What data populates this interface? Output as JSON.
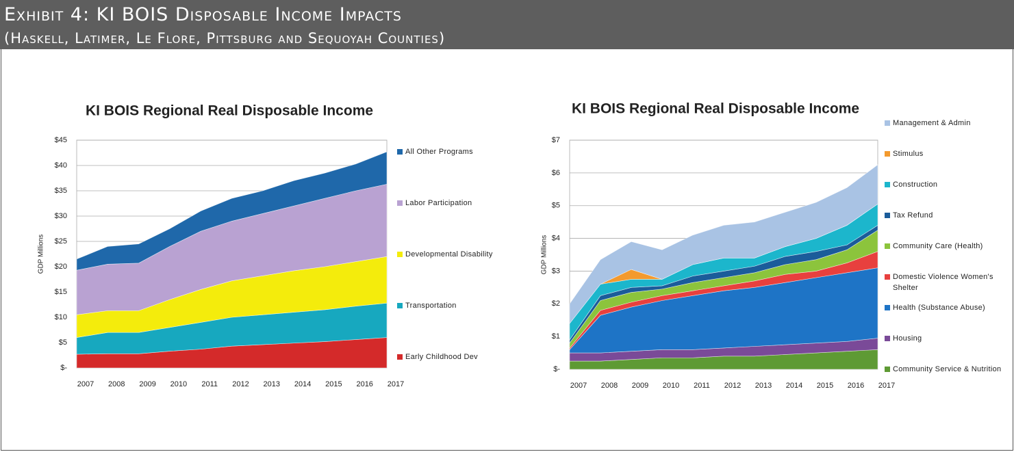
{
  "header": {
    "title": "Exhibit 4: KI BOIS Disposable Income Impacts",
    "subtitle": "(Haskell, Latimer, Le Flore, Pittsburg and Sequoyah Counties)"
  },
  "chart_data": [
    {
      "type": "stacked_area",
      "title": "KI BOIS Regional Real Disposable Income",
      "y_label": "GDP Millions",
      "categories": [
        "2007",
        "2008",
        "2009",
        "2010",
        "2011",
        "2012",
        "2013",
        "2014",
        "2015",
        "2016",
        "2017"
      ],
      "ylim": [
        0,
        45
      ],
      "yticks": [
        {
          "value": 0,
          "label": "$-"
        },
        {
          "value": 5,
          "label": "$5"
        },
        {
          "value": 10,
          "label": "$10"
        },
        {
          "value": 15,
          "label": "$15"
        },
        {
          "value": 20,
          "label": "$20"
        },
        {
          "value": 25,
          "label": "$25"
        },
        {
          "value": 30,
          "label": "$30"
        },
        {
          "value": 35,
          "label": "$35"
        },
        {
          "value": 40,
          "label": "$40"
        },
        {
          "value": 45,
          "label": "$45"
        }
      ],
      "grid": true,
      "series": [
        {
          "name": "Early Childhood Dev",
          "color": "#d42a2a",
          "values": [
            2.7,
            2.8,
            2.8,
            3.3,
            3.7,
            4.3,
            4.6,
            4.9,
            5.2,
            5.6,
            6.0
          ]
        },
        {
          "name": "Transportation",
          "color": "#17a8bf",
          "values": [
            3.3,
            4.2,
            4.2,
            4.7,
            5.3,
            5.7,
            5.9,
            6.1,
            6.3,
            6.6,
            6.8
          ]
        },
        {
          "name": "Developmental Disability",
          "color": "#f4ec0c",
          "values": [
            4.5,
            4.3,
            4.3,
            5.5,
            6.5,
            7.2,
            7.7,
            8.2,
            8.5,
            8.8,
            9.2
          ]
        },
        {
          "name": "Labor Participation",
          "color": "#b9a2d2",
          "values": [
            8.8,
            9.2,
            9.4,
            10.5,
            11.5,
            11.8,
            12.3,
            12.8,
            13.5,
            14.0,
            14.3
          ]
        },
        {
          "name": "All Other Programs",
          "color": "#1f68aa",
          "values": [
            2.2,
            3.5,
            3.8,
            3.5,
            4.0,
            4.5,
            4.5,
            5.0,
            5.0,
            5.3,
            6.4
          ]
        }
      ]
    },
    {
      "type": "stacked_area",
      "title": "KI BOIS Regional Real Disposable Income",
      "y_label": "GDP Millions",
      "categories": [
        "2007",
        "2008",
        "2009",
        "2010",
        "2011",
        "2012",
        "2013",
        "2014",
        "2015",
        "2016",
        "2017"
      ],
      "ylim": [
        0,
        7
      ],
      "yticks": [
        {
          "value": 0,
          "label": "$-"
        },
        {
          "value": 1,
          "label": "$1"
        },
        {
          "value": 2,
          "label": "$2"
        },
        {
          "value": 3,
          "label": "$3"
        },
        {
          "value": 4,
          "label": "$4"
        },
        {
          "value": 5,
          "label": "$5"
        },
        {
          "value": 6,
          "label": "$6"
        },
        {
          "value": 7,
          "label": "$7"
        }
      ],
      "grid": true,
      "series": [
        {
          "name": "Community Service & Nutrition",
          "color": "#5e9a34",
          "values": [
            0.25,
            0.25,
            0.3,
            0.35,
            0.35,
            0.4,
            0.4,
            0.45,
            0.5,
            0.55,
            0.6
          ]
        },
        {
          "name": "Housing",
          "color": "#7a4a98",
          "values": [
            0.25,
            0.25,
            0.25,
            0.25,
            0.25,
            0.25,
            0.3,
            0.3,
            0.3,
            0.3,
            0.35
          ]
        },
        {
          "name": "Health (Substance Abuse)",
          "color": "#1e74c6",
          "values": [
            0.1,
            1.15,
            1.35,
            1.5,
            1.65,
            1.75,
            1.8,
            1.9,
            2.0,
            2.1,
            2.15
          ]
        },
        {
          "name": "Domestic Violence Women's Shelter",
          "color": "#e8403e",
          "values": [
            0.05,
            0.15,
            0.15,
            0.15,
            0.15,
            0.15,
            0.2,
            0.25,
            0.2,
            0.3,
            0.5
          ]
        },
        {
          "name": "Community Care (Health)",
          "color": "#8cc43c",
          "values": [
            0.15,
            0.3,
            0.3,
            0.2,
            0.25,
            0.25,
            0.25,
            0.3,
            0.35,
            0.4,
            0.65
          ]
        },
        {
          "name": "Tax Refund",
          "color": "#1b5c9a",
          "values": [
            0.1,
            0.15,
            0.15,
            0.1,
            0.2,
            0.2,
            0.2,
            0.25,
            0.25,
            0.15,
            0.15
          ]
        },
        {
          "name": "Construction",
          "color": "#1cb6cc",
          "values": [
            0.5,
            0.35,
            0.25,
            0.2,
            0.35,
            0.4,
            0.25,
            0.3,
            0.4,
            0.6,
            0.65
          ]
        },
        {
          "name": "Stimulus",
          "color": "#f39a2e",
          "values": [
            0,
            0,
            0.3,
            0,
            0,
            0,
            0,
            0,
            0,
            0,
            0
          ]
        },
        {
          "name": "Management & Admin",
          "color": "#a9c3e4",
          "values": [
            0.6,
            0.75,
            0.85,
            0.9,
            0.9,
            1.0,
            1.1,
            1.05,
            1.1,
            1.15,
            1.2
          ]
        }
      ]
    }
  ]
}
